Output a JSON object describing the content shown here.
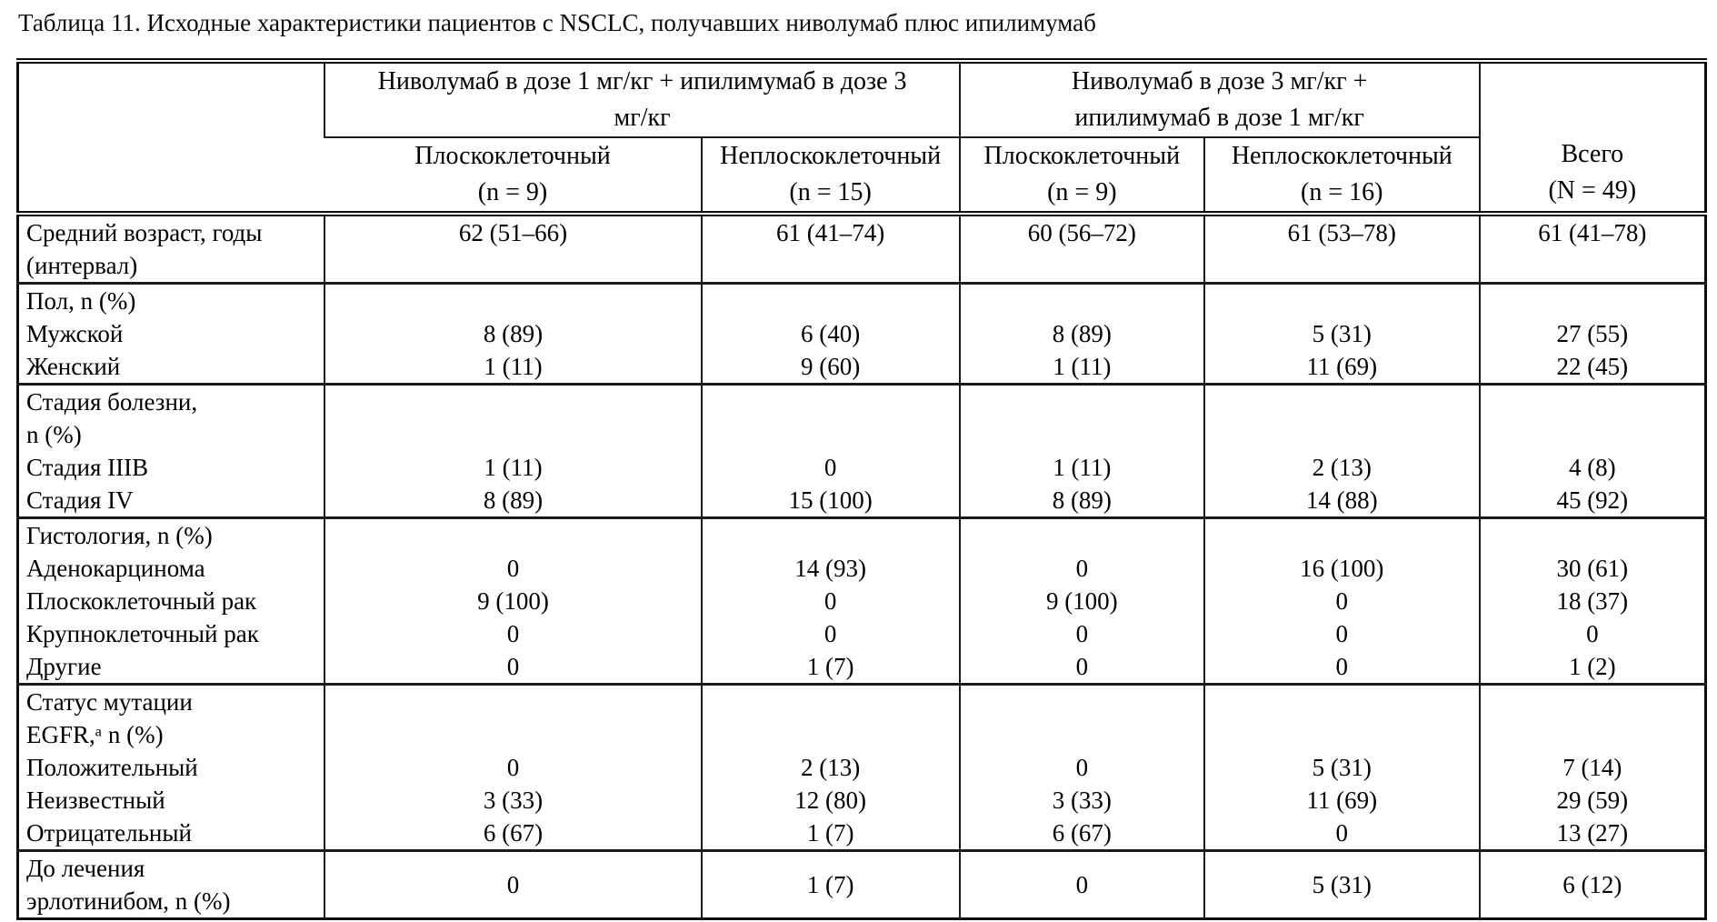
{
  "title": "Таблица 11. Исходные характеристики пациентов с NSCLC, получавших ниволумаб плюс ипилимумаб",
  "header": {
    "groups": [
      {
        "lines": [
          "Ниволумаб в дозе 1 мг/кг + ипилимумаб в дозе 3",
          "мг/кг"
        ]
      },
      {
        "lines": [
          "Ниволумаб в дозе 3 мг/кг +",
          "ипилимумаб в дозе 1 мг/кг"
        ]
      }
    ],
    "sub_columns": [
      {
        "label": "Плоскоклеточный",
        "count": "(n = 9)"
      },
      {
        "label": "Неплоскоклеточный",
        "count": "(n = 15)"
      },
      {
        "label": "Плоскоклеточный",
        "count": "(n = 9)"
      },
      {
        "label": "Неплоскоклеточный",
        "count": "(n = 16)"
      }
    ],
    "total": {
      "label": "Всего",
      "count": "(N = 49)"
    }
  },
  "sections": [
    {
      "lines": [
        {
          "label": "Средний возраст, годы",
          "values": [
            "62 (51–66)",
            "61 (41–74)",
            "60 (56–72)",
            "61 (53–78)",
            "61 (41–78)"
          ]
        },
        {
          "label": "(интервал)"
        }
      ]
    },
    {
      "lines": [
        {
          "label": "Пол, n (%)"
        },
        {
          "label": "Мужской",
          "values": [
            "8 (89)",
            "6 (40)",
            "8 (89)",
            "5 (31)",
            "27 (55)"
          ]
        },
        {
          "label": "Женский",
          "values": [
            "1 (11)",
            "9 (60)",
            "1 (11)",
            "11 (69)",
            "22 (45)"
          ]
        }
      ]
    },
    {
      "lines": [
        {
          "label": "Стадия болезни,"
        },
        {
          "label": "n (%)"
        },
        {
          "label": "Стадия IIIB",
          "values": [
            "1 (11)",
            "0",
            "1 (11)",
            "2 (13)",
            "4 (8)"
          ]
        },
        {
          "label": "Стадия IV",
          "values": [
            "8 (89)",
            "15 (100)",
            "8 (89)",
            "14 (88)",
            "45 (92)"
          ]
        }
      ]
    },
    {
      "lines": [
        {
          "label": "Гистология, n (%)"
        },
        {
          "label": "Аденокарцинома",
          "values": [
            "0",
            "14 (93)",
            "0",
            "16 (100)",
            "30 (61)"
          ]
        },
        {
          "label": "Плоскоклеточный рак",
          "values": [
            "9 (100)",
            "0",
            "9 (100)",
            "0",
            "18 (37)"
          ]
        },
        {
          "label": "Крупноклеточный рак",
          "values": [
            "0",
            "0",
            "0",
            "0",
            "0"
          ]
        },
        {
          "label": "Другие",
          "values": [
            "0",
            "1 (7)",
            "0",
            "0",
            "1 (2)"
          ]
        }
      ]
    },
    {
      "lines": [
        {
          "label": "Статус мутации"
        },
        {
          "label": "EGFR,ᵃ n (%)"
        },
        {
          "label": "Положительный",
          "values": [
            "0",
            "2 (13)",
            "0",
            "5 (31)",
            "7 (14)"
          ]
        },
        {
          "label": "Неизвестный",
          "values": [
            "3 (33)",
            "12 (80)",
            "3 (33)",
            "11 (69)",
            "29 (59)"
          ]
        },
        {
          "label": "Отрицательный",
          "values": [
            "6 (67)",
            "1 (7)",
            "6 (67)",
            "0",
            "13 (27)"
          ]
        }
      ]
    },
    {
      "lines": [
        {
          "label": "До лечения"
        },
        {
          "label": "эрлотинибом, n (%)"
        }
      ],
      "values": [
        "0",
        "1 (7)",
        "0",
        "5 (31)",
        "6 (12)"
      ]
    }
  ]
}
